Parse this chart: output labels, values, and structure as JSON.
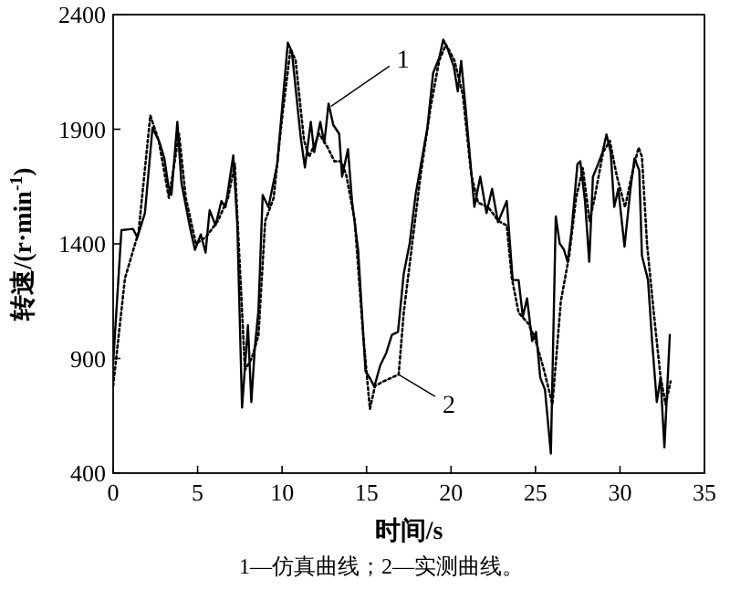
{
  "chart_data": {
    "type": "line",
    "xlabel": "时间/s",
    "ylabel": "转速/(r·min$^{-1}$)",
    "xlim": [
      0,
      35
    ],
    "ylim": [
      400,
      2400
    ],
    "xticks": [
      0,
      5,
      10,
      15,
      20,
      25,
      30,
      35
    ],
    "yticks": [
      400,
      900,
      1400,
      1900,
      2400
    ],
    "series": [
      {
        "color": "#000000",
        "line_style": "solid",
        "x": [
          0,
          0.49,
          1.18,
          1.43,
          1.88,
          2.33,
          2.75,
          3.03,
          3.27,
          3.45,
          3.8,
          4.04,
          4.56,
          4.84,
          5.19,
          5.47,
          5.71,
          6.06,
          6.41,
          6.65,
          7.11,
          7.35,
          7.63,
          7.98,
          8.18,
          8.39,
          8.6,
          8.85,
          9.19,
          9.71,
          10.34,
          10.58,
          11.1,
          11.35,
          11.7,
          11.9,
          12.26,
          12.5,
          12.75,
          13.03,
          13.38,
          13.55,
          13.9,
          14.14,
          14.5,
          14.94,
          15.18,
          15.46,
          15.81,
          16.16,
          16.5,
          16.86,
          17.2,
          17.55,
          17.9,
          18.6,
          18.94,
          19.3,
          19.54,
          19.8,
          20.17,
          20.4,
          20.6,
          20.87,
          21.38,
          21.73,
          22.1,
          22.43,
          22.78,
          23.3,
          23.65,
          24.0,
          24.25,
          24.5,
          24.8,
          25.03,
          25.28,
          25.56,
          25.91,
          26.2,
          26.43,
          26.68,
          26.9,
          27.13,
          27.48,
          27.65,
          27.93,
          28.18,
          28.4,
          28.7,
          28.97,
          29.2,
          29.45,
          29.66,
          29.9,
          30.27,
          30.62,
          30.86,
          31.14,
          31.3,
          31.66,
          31.9,
          32.18,
          32.4,
          32.63,
          32.95
        ],
        "values": [
          880,
          1460,
          1465,
          1428,
          1534,
          1906,
          1842,
          1773,
          1653,
          1614,
          1932,
          1667,
          1468,
          1374,
          1441,
          1362,
          1547,
          1481,
          1587,
          1560,
          1786,
          1483,
          686,
          1045,
          710,
          950,
          1109,
          1613,
          1560,
          1747,
          2278,
          2238,
          1866,
          1733,
          1932,
          1800,
          1932,
          1840,
          2012,
          1919,
          1880,
          1693,
          1813,
          1587,
          1374,
          844,
          817,
          777,
          870,
          923,
          1003,
          1016,
          1269,
          1402,
          1613,
          1906,
          2145,
          2211,
          2291,
          2251,
          2171,
          2065,
          2198,
          1986,
          1561,
          1693,
          1534,
          1640,
          1494,
          1587,
          1242,
          1242,
          1083,
          1162,
          976,
          1016,
          817,
          764,
          485,
          1520,
          1402,
          1375,
          1322,
          1454,
          1747,
          1760,
          1587,
          1322,
          1693,
          1747,
          1800,
          1877,
          1800,
          1561,
          1640,
          1388,
          1640,
          1773,
          1720,
          1348,
          1242,
          976,
          710,
          817,
          512,
          1003
        ]
      },
      {
        "color": "#000000",
        "line_style": "dotted",
        "x": [
          0,
          0.7,
          1.5,
          2.2,
          2.7,
          3.3,
          3.9,
          4.3,
          4.9,
          5.5,
          6.2,
          6.8,
          7.2,
          7.5,
          7.8,
          8.2,
          8.6,
          9.0,
          9.5,
          10.0,
          10.5,
          10.8,
          11.3,
          11.6,
          12.2,
          12.7,
          13.1,
          13.5,
          13.8,
          14.3,
          14.8,
          15.2,
          15.5,
          16.0,
          16.6,
          16.9,
          17.2,
          17.7,
          18.2,
          18.8,
          19.3,
          19.7,
          20.2,
          20.7,
          21.2,
          21.6,
          22.2,
          22.8,
          23.3,
          23.6,
          24.0,
          24.6,
          25.0,
          25.5,
          26.0,
          26.5,
          27.0,
          27.4,
          27.8,
          28.2,
          28.5,
          29.0,
          29.4,
          29.8,
          30.3,
          30.7,
          31.1,
          31.3,
          31.6,
          32.0,
          32.4,
          32.7,
          33.0
        ],
        "values": [
          780,
          1250,
          1450,
          1960,
          1850,
          1600,
          1880,
          1600,
          1400,
          1430,
          1500,
          1600,
          1750,
          1300,
          850,
          900,
          1000,
          1500,
          1600,
          1950,
          2250,
          2200,
          1850,
          1780,
          1880,
          1820,
          1760,
          1760,
          1700,
          1500,
          1000,
          680,
          780,
          800,
          820,
          830,
          1100,
          1400,
          1700,
          2000,
          2200,
          2270,
          2200,
          2050,
          1700,
          1580,
          1560,
          1500,
          1480,
          1250,
          1100,
          1050,
          980,
          850,
          700,
          1150,
          1350,
          1600,
          1730,
          1500,
          1600,
          1800,
          1850,
          1700,
          1560,
          1700,
          1820,
          1780,
          1400,
          1100,
          820,
          700,
          800
        ]
      }
    ],
    "annotations": [
      {
        "text": "1",
        "x": 12.9,
        "y": 2000
      },
      {
        "text": "2",
        "x": 16.9,
        "y": 830
      },
      "1—仿真曲线；2—实测曲线。"
    ]
  }
}
